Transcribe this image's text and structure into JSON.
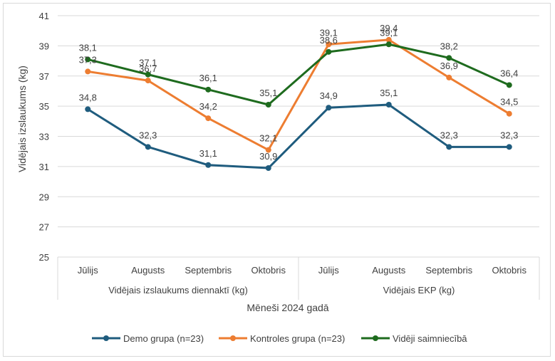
{
  "chart_data": {
    "type": "line",
    "groups": [
      {
        "label": "Vidējais izslaukums diennaktī (kg)",
        "categories": [
          "Jūlijs",
          "Augusts",
          "Septembris",
          "Oktobris"
        ]
      },
      {
        "label": "Vidējais EKP (kg)",
        "categories": [
          "Jūlijs",
          "Augusts",
          "Septembris",
          "Oktobris"
        ]
      }
    ],
    "categories": [
      "Jūlijs",
      "Augusts",
      "Septembris",
      "Oktobris",
      "Jūlijs",
      "Augusts",
      "Septembris",
      "Oktobris"
    ],
    "series": [
      {
        "name": "Demo grupa (n=23)",
        "color": "#1f5c7e",
        "values": [
          34.8,
          32.3,
          31.1,
          30.9,
          34.9,
          35.1,
          32.3,
          32.3
        ],
        "labels": [
          "34,8",
          "32,3",
          "31,1",
          "30,9",
          "34,9",
          "35,1",
          "32,3",
          "32,3"
        ]
      },
      {
        "name": "Kontroles grupa (n=23)",
        "color": "#ed7d31",
        "values": [
          37.3,
          36.7,
          34.2,
          32.1,
          39.1,
          39.4,
          36.9,
          34.5
        ],
        "labels": [
          "37,3",
          "36,7",
          "34,2",
          "32,1",
          "39,1",
          "39,4",
          "36,9",
          "34,5"
        ]
      },
      {
        "name": "Vidēji saimniecībā",
        "color": "#1e6b1e",
        "values": [
          38.1,
          37.1,
          36.1,
          35.1,
          38.6,
          39.1,
          38.2,
          36.4
        ],
        "labels": [
          "38,1",
          "37,1",
          "36,1",
          "35,1",
          "38,6",
          "39,1",
          "38,2",
          "36,4"
        ]
      }
    ],
    "yticks": [
      "25",
      "27",
      "29",
      "31",
      "33",
      "35",
      "37",
      "39",
      "41"
    ],
    "ylim": [
      25,
      41
    ],
    "ylabel": "Vidējais izslaukums (kg)",
    "xlabel": "Mēneši 2024 gadā",
    "grid": true,
    "legend": "bottom"
  }
}
